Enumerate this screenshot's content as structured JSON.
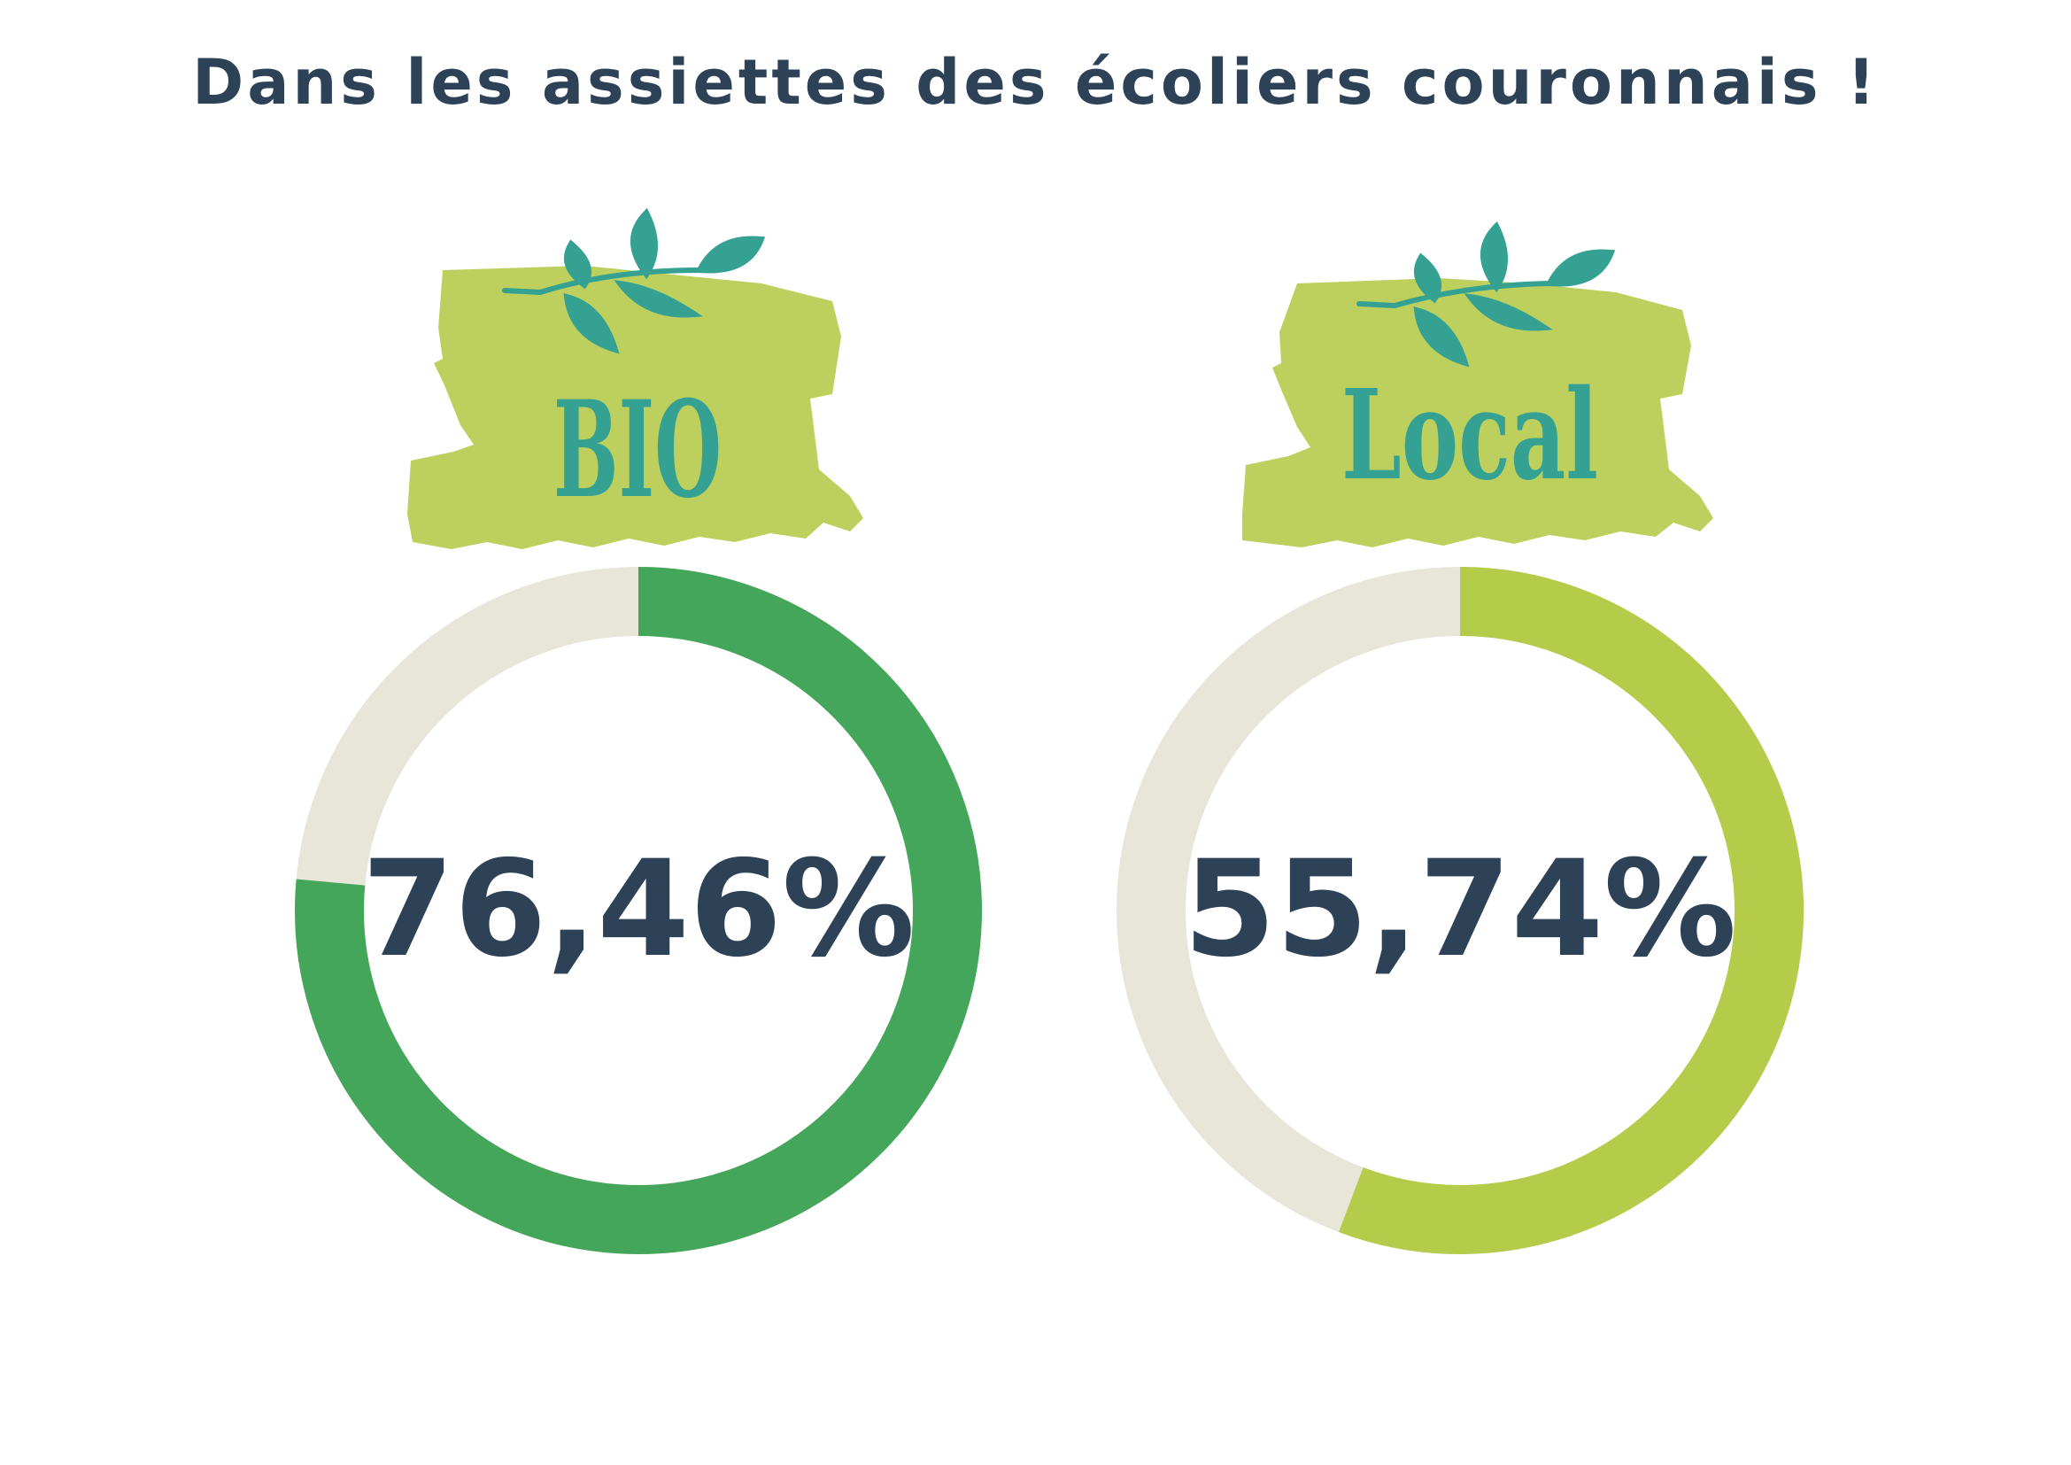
{
  "title": "Dans les assiettes des écoliers couronnais !",
  "colors": {
    "title": "#2d4157",
    "track": "#e8e5d9",
    "badge_green": "#bdd05d",
    "leaf": "#34a193",
    "label": "#34a193"
  },
  "chart_data": [
    {
      "type": "pie",
      "label": "BIO",
      "value": 76.46,
      "display": "76,46%",
      "color": "#43a65a",
      "track_color": "#e8e5d9"
    },
    {
      "type": "pie",
      "label": "Local",
      "value": 55.74,
      "display": "55,74%",
      "color": "#b4cc4a",
      "track_color": "#e8e5d9"
    }
  ]
}
